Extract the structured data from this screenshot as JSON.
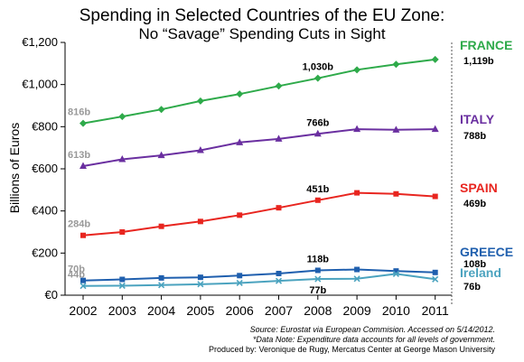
{
  "chart_data": {
    "type": "line",
    "title": "Spending in Selected Countries of the EU Zone:",
    "subtitle": "No “Savage” Spending Cuts in Sight",
    "ylabel": "Billions of Euros",
    "xlabel": "",
    "ylim": [
      0,
      1200
    ],
    "y_ticks": [
      "€0",
      "€200",
      "€400",
      "€600",
      "€800",
      "€1,000",
      "€1,200"
    ],
    "y_tick_values": [
      0,
      200,
      400,
      600,
      800,
      1000,
      1200
    ],
    "categories": [
      "2002",
      "2003",
      "2004",
      "2005",
      "2006",
      "2007",
      "2008",
      "2009",
      "2010",
      "2011"
    ],
    "grid": false,
    "series": [
      {
        "name": "FRANCE",
        "end_label": "1,119b",
        "color": "#2eaa4a",
        "marker": "diamond",
        "values": [
          816,
          848,
          882,
          922,
          955,
          993,
          1030,
          1070,
          1096,
          1119
        ],
        "annotations": [
          {
            "index": 0,
            "text": "816b",
            "color": "#999999"
          },
          {
            "index": 6,
            "text": "1,030b",
            "color": "#000000"
          }
        ]
      },
      {
        "name": "ITALY",
        "end_label": "788b",
        "color": "#6a2fa0",
        "marker": "triangle",
        "values": [
          613,
          645,
          664,
          688,
          725,
          742,
          766,
          788,
          785,
          788
        ],
        "annotations": [
          {
            "index": 0,
            "text": "613b",
            "color": "#999999"
          },
          {
            "index": 6,
            "text": "766b",
            "color": "#000000"
          }
        ]
      },
      {
        "name": "SPAIN",
        "end_label": "469b",
        "color": "#e8251f",
        "marker": "square",
        "values": [
          284,
          300,
          327,
          350,
          380,
          415,
          451,
          486,
          481,
          469
        ],
        "annotations": [
          {
            "index": 0,
            "text": "284b",
            "color": "#999999"
          },
          {
            "index": 6,
            "text": "451b",
            "color": "#000000"
          }
        ]
      },
      {
        "name": "GREECE",
        "end_label": "108b",
        "color": "#1f5fae",
        "marker": "square",
        "values": [
          70,
          75,
          82,
          85,
          93,
          103,
          118,
          122,
          115,
          108
        ],
        "annotations": [
          {
            "index": 0,
            "text": "70b",
            "color": "#999999"
          },
          {
            "index": 6,
            "text": "118b",
            "color": "#000000"
          }
        ]
      },
      {
        "name": "Ireland",
        "end_label": "76b",
        "color": "#4ba3bf",
        "marker": "x",
        "values": [
          44,
          45,
          48,
          52,
          58,
          68,
          77,
          78,
          101,
          76
        ],
        "annotations": [
          {
            "index": 0,
            "text": "44b",
            "color": "#999999"
          },
          {
            "index": 6,
            "text": "77b",
            "color": "#000000"
          }
        ]
      }
    ],
    "footnotes": [
      "Source: Eurostat via European Commision. Accessed on 5/14/2012.",
      "*Data Note: Expenditure data accounts for all levels of government.",
      "Produced by: Veronique de Rugy, Mercatus Center at George Mason University"
    ]
  }
}
